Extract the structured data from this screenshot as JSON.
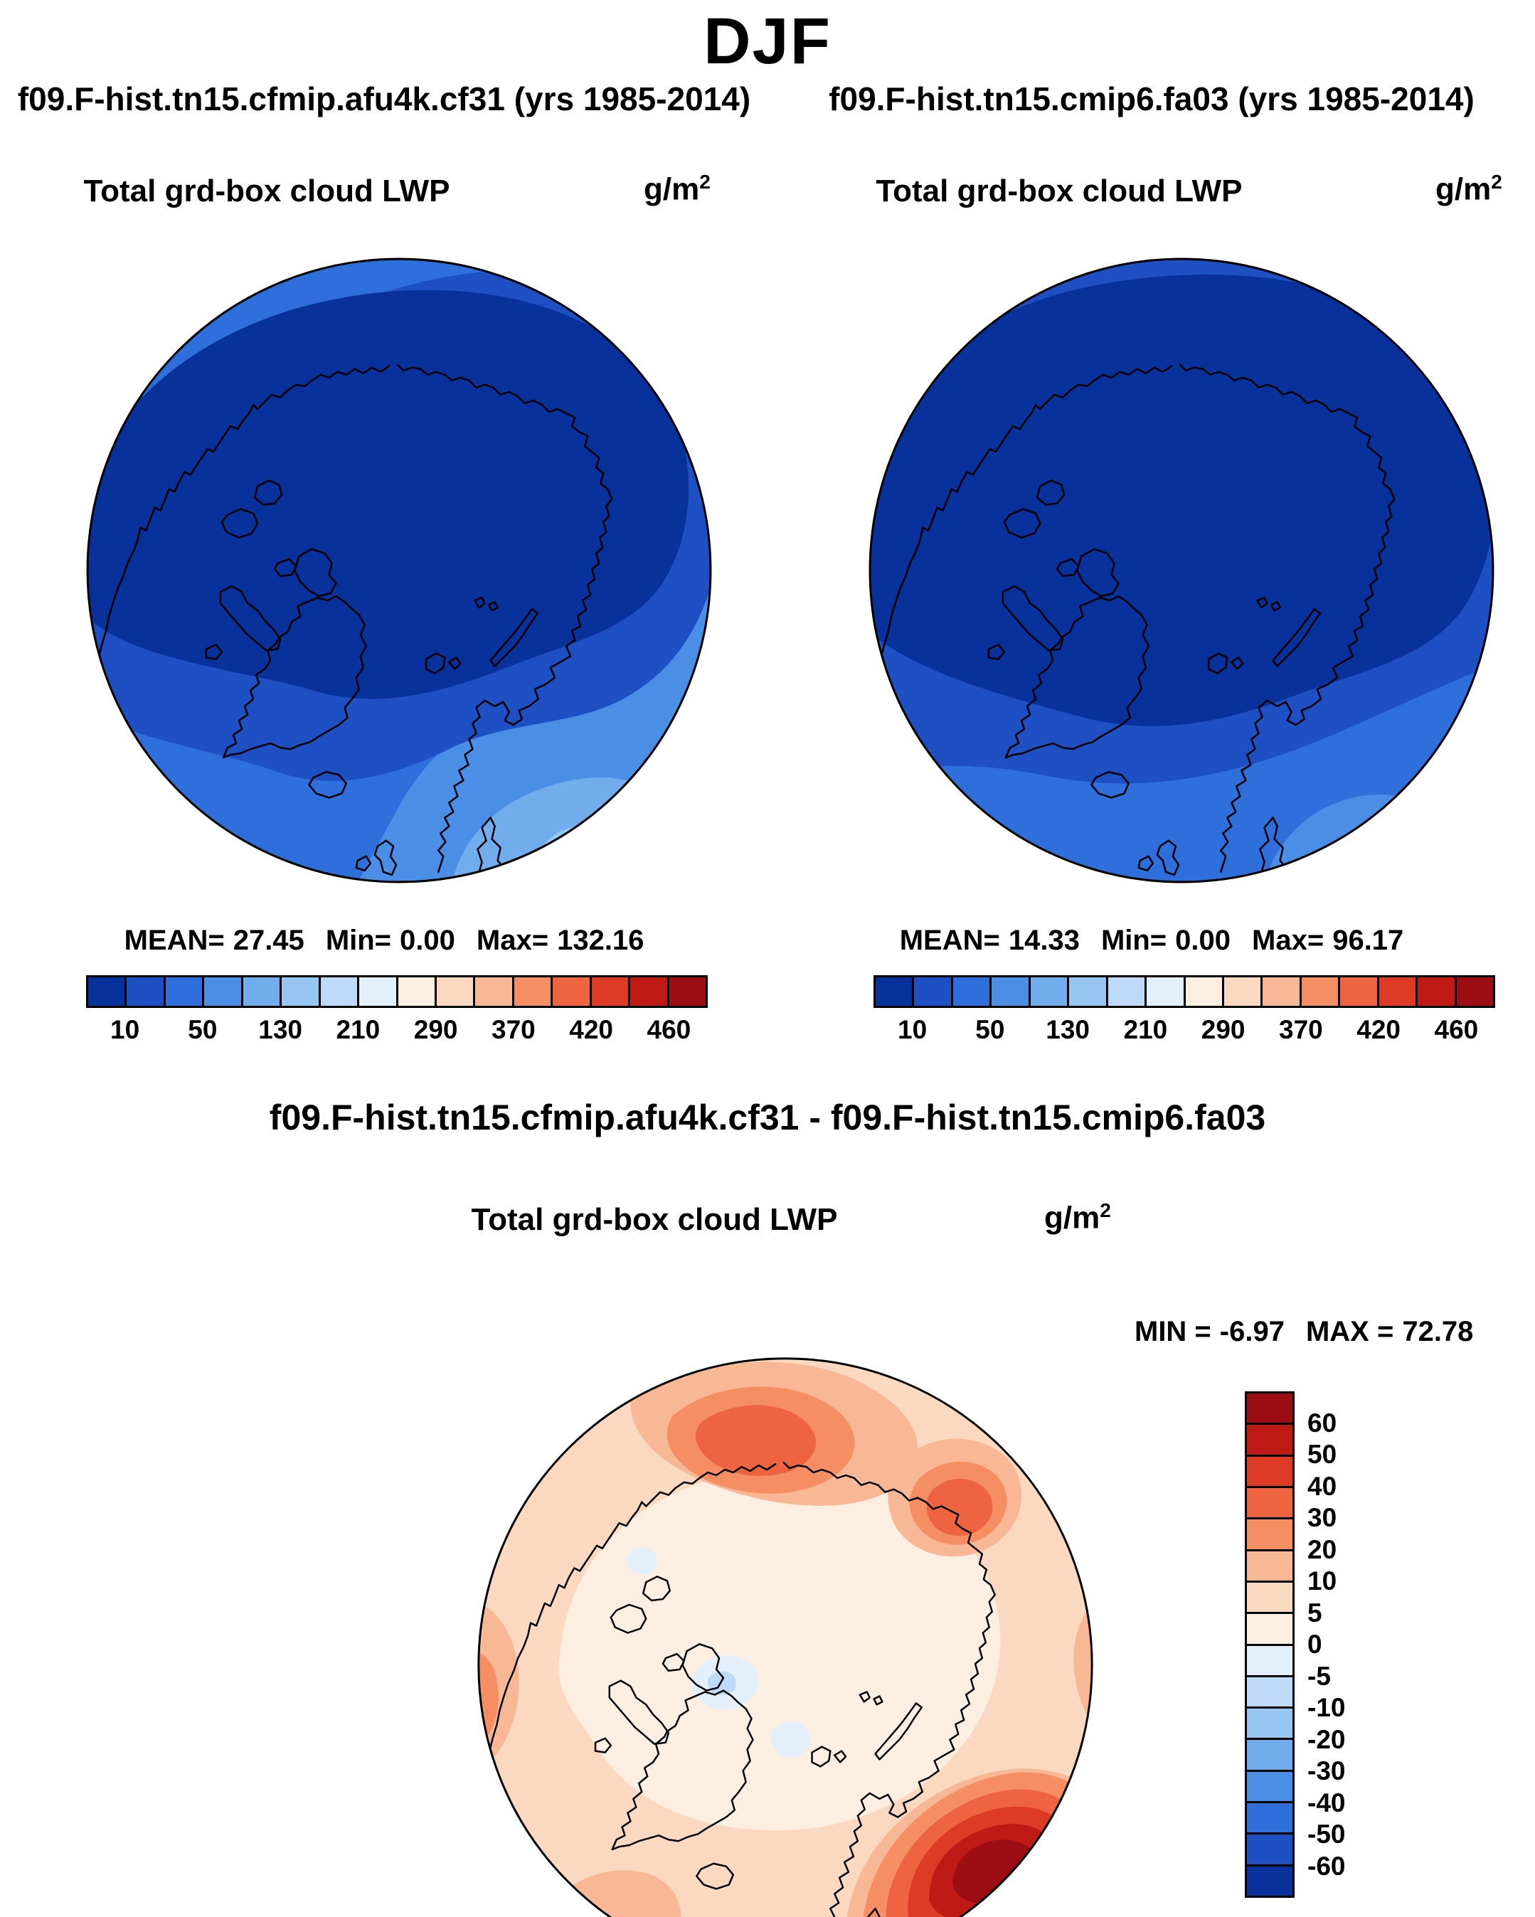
{
  "page_title": "DJF",
  "panels": {
    "left": {
      "run_title": "f09.F-hist.tn15.cfmip.afu4k.cf31 (yrs 1985-2014)",
      "field_title": "Total grd-box cloud LWP",
      "units_base": "g/m",
      "units_sup": "2",
      "stats": {
        "mean_label": "MEAN=",
        "mean": "27.45",
        "min_label": "Min=",
        "min": "0.00",
        "max_label": "Max=",
        "max": "132.16"
      }
    },
    "right": {
      "run_title": "f09.F-hist.tn15.cmip6.fa03 (yrs 1985-2014)",
      "field_title": "Total grd-box cloud LWP",
      "units_base": "g/m",
      "units_sup": "2",
      "stats": {
        "mean_label": "MEAN=",
        "mean": "14.33",
        "min_label": "Min=",
        "min": "0.00",
        "max_label": "Max=",
        "max": "96.17"
      }
    },
    "diff": {
      "run_title": "f09.F-hist.tn15.cfmip.afu4k.cf31 - f09.F-hist.tn15.cmip6.fa03",
      "field_title": "Total grd-box cloud LWP",
      "units_base": "g/m",
      "units_sup": "2",
      "stats": {
        "min_label": "MIN =",
        "min": "-6.97",
        "max_label": "MAX =",
        "max": "72.78"
      }
    }
  },
  "colorbar_abs": {
    "colors": [
      "#08319c",
      "#1e4fc3",
      "#2f6fdb",
      "#4a8ee6",
      "#71aced",
      "#98c6f3",
      "#bedaf8",
      "#e3f0fb",
      "#fdeee2",
      "#fbd9c0",
      "#f9b895",
      "#f58e62",
      "#ee6340",
      "#dd3b26",
      "#c01a17",
      "#9c0e14"
    ],
    "ticks": [
      "10",
      "50",
      "130",
      "210",
      "290",
      "370",
      "420",
      "460"
    ]
  },
  "colorbar_diff": {
    "colors": [
      "#9c0e14",
      "#c01a17",
      "#dd3b26",
      "#ee6340",
      "#f58e62",
      "#f9b895",
      "#fbd9c0",
      "#fdeee2",
      "#e3f0fb",
      "#bedaf8",
      "#98c6f3",
      "#71aced",
      "#4a8ee6",
      "#2f6fdb",
      "#1e4fc3",
      "#08319c"
    ],
    "ticks": [
      "60",
      "50",
      "40",
      "30",
      "20",
      "10",
      "5",
      "0",
      "-5",
      "-10",
      "-20",
      "-30",
      "-40",
      "-50",
      "-60"
    ]
  },
  "chart_data": [
    {
      "type": "heatmap",
      "subtype": "polar-stereographic-map-north",
      "season": "DJF",
      "panel": "left",
      "title": "Total grd-box cloud LWP",
      "run": "f09.F-hist.tn15.cfmip.afu4k.cf31 (yrs 1985-2014)",
      "units": "g/m^2",
      "stats": {
        "mean": 27.45,
        "min": 0.0,
        "max": 132.16
      },
      "colorbar": {
        "orientation": "horizontal",
        "position": "bottom",
        "tick_values": [
          10,
          50,
          130,
          210,
          290,
          370,
          420,
          460
        ],
        "palette": "blue-to-red diverging",
        "n_colors": 16
      }
    },
    {
      "type": "heatmap",
      "subtype": "polar-stereographic-map-north",
      "season": "DJF",
      "panel": "right",
      "title": "Total grd-box cloud LWP",
      "run": "f09.F-hist.tn15.cmip6.fa03 (yrs 1985-2014)",
      "units": "g/m^2",
      "stats": {
        "mean": 14.33,
        "min": 0.0,
        "max": 96.17
      },
      "colorbar": {
        "orientation": "horizontal",
        "position": "bottom",
        "tick_values": [
          10,
          50,
          130,
          210,
          290,
          370,
          420,
          460
        ],
        "palette": "blue-to-red diverging",
        "n_colors": 16
      }
    },
    {
      "type": "heatmap",
      "subtype": "polar-stereographic-map-north",
      "season": "DJF",
      "panel": "difference",
      "title": "Total grd-box cloud LWP",
      "run": "f09.F-hist.tn15.cfmip.afu4k.cf31 - f09.F-hist.tn15.cmip6.fa03",
      "units": "g/m^2",
      "stats": {
        "min": -6.97,
        "max": 72.78
      },
      "colorbar": {
        "orientation": "vertical",
        "position": "right",
        "tick_values": [
          60,
          50,
          40,
          30,
          20,
          10,
          5,
          0,
          -5,
          -10,
          -20,
          -30,
          -40,
          -50,
          -60
        ],
        "palette": "red-to-blue diverging",
        "n_colors": 16
      }
    }
  ]
}
